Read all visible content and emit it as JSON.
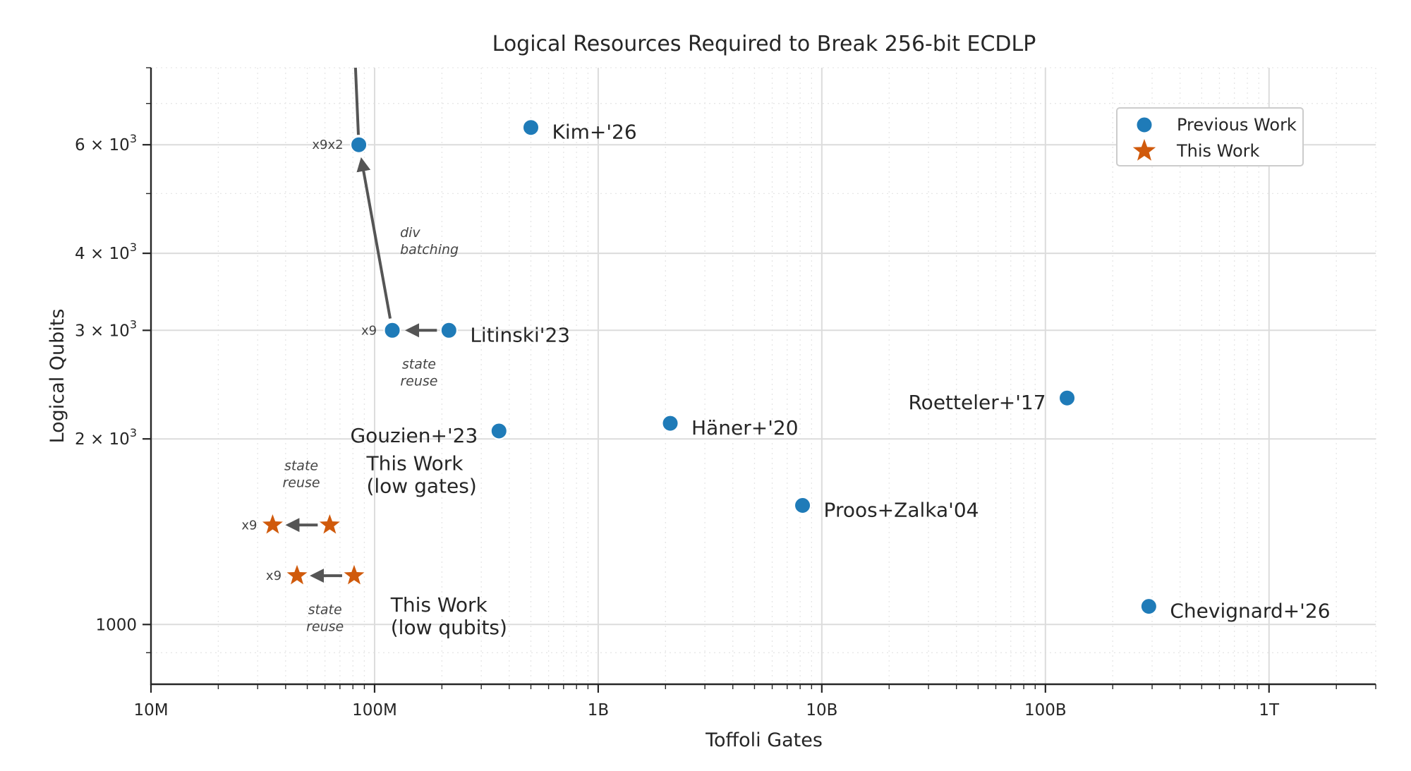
{
  "chart_data": {
    "type": "scatter",
    "title": "Logical Resources Required to Break 256-bit ECDLP",
    "xlabel": "Toffoli Gates",
    "ylabel": "Logical Qubits",
    "x_scale": "log",
    "y_scale": "log",
    "xlim": [
      10000000,
      3000000000000
    ],
    "ylim": [
      800,
      8000
    ],
    "x_ticks": [
      {
        "value": 10000000,
        "label": "10M"
      },
      {
        "value": 100000000,
        "label": "100M"
      },
      {
        "value": 1000000000,
        "label": "1B"
      },
      {
        "value": 10000000000,
        "label": "10B"
      },
      {
        "value": 100000000000,
        "label": "100B"
      },
      {
        "value": 1000000000000,
        "label": "1T"
      }
    ],
    "y_ticks": [
      {
        "value": 1000,
        "label": "1000"
      },
      {
        "value": 2000,
        "label": "2 × 10",
        "sup": "3"
      },
      {
        "value": 3000,
        "label": "3 × 10",
        "sup": "3"
      },
      {
        "value": 4000,
        "label": "4 × 10",
        "sup": "3"
      },
      {
        "value": 6000,
        "label": "6 × 10",
        "sup": "3"
      }
    ],
    "grid": true,
    "legend_position": "top-right",
    "colors": {
      "previous": "#1f7bb8",
      "this": "#d05a0c",
      "arrow": "#555555"
    },
    "series": [
      {
        "name": "Previous Work",
        "marker": "circle",
        "points": [
          {
            "x": 500000000,
            "y": 6400,
            "label": "Kim+'26",
            "label_side": "right"
          },
          {
            "x": 85000000,
            "y": 6000,
            "label": "x9x2",
            "label_side": "left",
            "small": true
          },
          {
            "x": 120000000,
            "y": 3000,
            "label": "x9",
            "label_side": "left",
            "small": true
          },
          {
            "x": 215000000,
            "y": 3000,
            "label": "Litinski'23",
            "label_side": "right"
          },
          {
            "x": 360000000,
            "y": 2060,
            "label": "Gouzien+'23",
            "label_side": "left"
          },
          {
            "x": 2100000000,
            "y": 2120,
            "label": "Häner+'20",
            "label_side": "right"
          },
          {
            "x": 125000000000,
            "y": 2330,
            "label": "Roetteler+'17",
            "label_side": "left"
          },
          {
            "x": 8200000000,
            "y": 1560,
            "label": "Proos+Zalka'04",
            "label_side": "right"
          },
          {
            "x": 290000000000,
            "y": 1070,
            "label": "Chevignard+'26",
            "label_side": "right"
          }
        ]
      },
      {
        "name": "This Work",
        "marker": "star",
        "points": [
          {
            "x": 35000000,
            "y": 1450,
            "label": "x9",
            "label_side": "left",
            "small": true
          },
          {
            "x": 63000000,
            "y": 1450
          },
          {
            "x": 45000000,
            "y": 1200,
            "label": "x9",
            "label_side": "left",
            "small": true
          },
          {
            "x": 81000000,
            "y": 1200
          }
        ]
      }
    ],
    "arrows": [
      {
        "from": [
          215000000,
          3000
        ],
        "to": [
          120000000,
          3000
        ]
      },
      {
        "from": [
          120000000,
          3000
        ],
        "to": [
          85000000,
          6000
        ]
      },
      {
        "from": [
          85000000,
          6000
        ],
        "to": [
          80000000,
          10000
        ]
      },
      {
        "from": [
          63000000,
          1450
        ],
        "to": [
          35000000,
          1450
        ]
      },
      {
        "from": [
          81000000,
          1200
        ],
        "to": [
          45000000,
          1200
        ]
      }
    ],
    "text_annotations": [
      {
        "lines": [
          "div",
          "batching"
        ],
        "style": "italic-left",
        "x": 130000000,
        "y": 4250
      },
      {
        "lines": [
          "state",
          "reuse"
        ],
        "style": "italic-center",
        "x": 158000000,
        "y": 2600
      },
      {
        "lines": [
          "state",
          "reuse"
        ],
        "style": "italic-center",
        "x": 47000000,
        "y": 1780
      },
      {
        "lines": [
          "state",
          "reuse"
        ],
        "style": "italic-center",
        "x": 60000000,
        "y": 1040
      },
      {
        "lines": [
          "This Work",
          "(low gates)"
        ],
        "style": "big-left",
        "x": 92000000,
        "y": 1780
      },
      {
        "lines": [
          "This Work",
          "(low qubits)"
        ],
        "style": "big-left",
        "x": 118000000,
        "y": 1050
      }
    ]
  }
}
